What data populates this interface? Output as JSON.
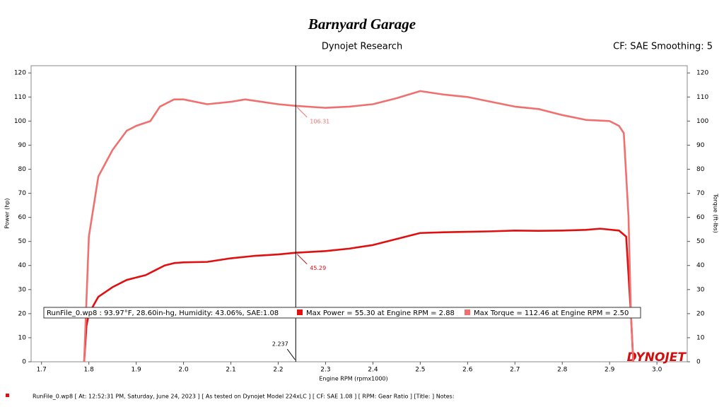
{
  "chart_data": {
    "type": "line",
    "logo": "Barnyard Garage",
    "title": "Dynojet Research",
    "subtitle": "CF: SAE Smoothing: 5",
    "brand": "DYNOJET",
    "x_label": "Engine RPM (rpmx1000)",
    "y_label": "Power (hp)",
    "y2_label": "Torque (ft-lbs)",
    "run_info": "RunFile_0.wp8  : 93.97°F, 28.60in-hg, Humidity: 43.06%, SAE:1.08",
    "footer": "RunFile_0.wp8 [ At: 12:52:31 PM, Saturday, June 24, 2023 ] [ As tested on Dynojet Model 224xLC ] [ CF: SAE 1.08 ] [ RPM: Gear Ratio ] [Title: ]  Notes:",
    "xlim": [
      1.678,
      3.064
    ],
    "xticks": [
      1.7,
      1.8,
      1.9,
      {
        "value": 2,
        "label": "2.0"
      },
      2.1,
      2.2,
      2.3,
      2.4,
      2.5,
      2.6,
      2.7,
      2.8,
      2.9,
      {
        "value": 3,
        "label": "3.0"
      }
    ],
    "ylim": [
      0,
      123
    ],
    "yticks": [
      0,
      10,
      20,
      30,
      40,
      50,
      60,
      70,
      80,
      90,
      100,
      110,
      120
    ],
    "y2lim": [
      0,
      123
    ],
    "y2ticks": [
      0,
      10,
      20,
      30,
      40,
      50,
      60,
      70,
      80,
      90,
      100,
      110,
      120
    ],
    "cursor": {
      "x": 2.237,
      "values": [
        45.29,
        106.31
      ]
    },
    "series": [
      {
        "name": "Max Power = 55.30 at Engine RPM = 2.88",
        "color": "#e01010",
        "x": [
          1.79,
          1.795,
          1.8,
          1.82,
          1.85,
          1.88,
          1.9,
          1.92,
          1.94,
          1.96,
          1.98,
          2.0,
          2.05,
          2.1,
          2.15,
          2.2,
          2.237,
          2.3,
          2.35,
          2.4,
          2.45,
          2.5,
          2.55,
          2.6,
          2.65,
          2.7,
          2.75,
          2.8,
          2.85,
          2.88,
          2.92,
          2.935,
          2.945,
          2.95
        ],
        "values": [
          0,
          15,
          20,
          27,
          31,
          34,
          35,
          36,
          38,
          40,
          41,
          41.3,
          41.5,
          43,
          44,
          44.6,
          45.29,
          46,
          47,
          48.5,
          51,
          53.5,
          53.8,
          54,
          54.2,
          54.5,
          54.4,
          54.5,
          54.8,
          55.3,
          54.5,
          52,
          20,
          0
        ]
      },
      {
        "name": "Max Torque = 112.46 at Engine RPM = 2.50",
        "color": "#f07070",
        "axis": "y2",
        "x": [
          1.79,
          1.8,
          1.82,
          1.85,
          1.88,
          1.9,
          1.93,
          1.95,
          1.98,
          2.0,
          2.05,
          2.1,
          2.13,
          2.2,
          2.237,
          2.3,
          2.35,
          2.4,
          2.45,
          2.5,
          2.55,
          2.6,
          2.65,
          2.7,
          2.75,
          2.8,
          2.85,
          2.9,
          2.92,
          2.93,
          2.94,
          2.945,
          2.95
        ],
        "values": [
          0,
          52,
          77,
          88,
          96,
          98,
          100,
          106,
          109,
          109,
          107,
          108,
          109,
          107,
          106.31,
          105.5,
          106,
          107,
          109.5,
          112.46,
          111,
          110,
          108,
          106,
          105,
          102.5,
          100.5,
          100,
          98,
          95,
          60,
          20,
          0
        ]
      }
    ]
  }
}
